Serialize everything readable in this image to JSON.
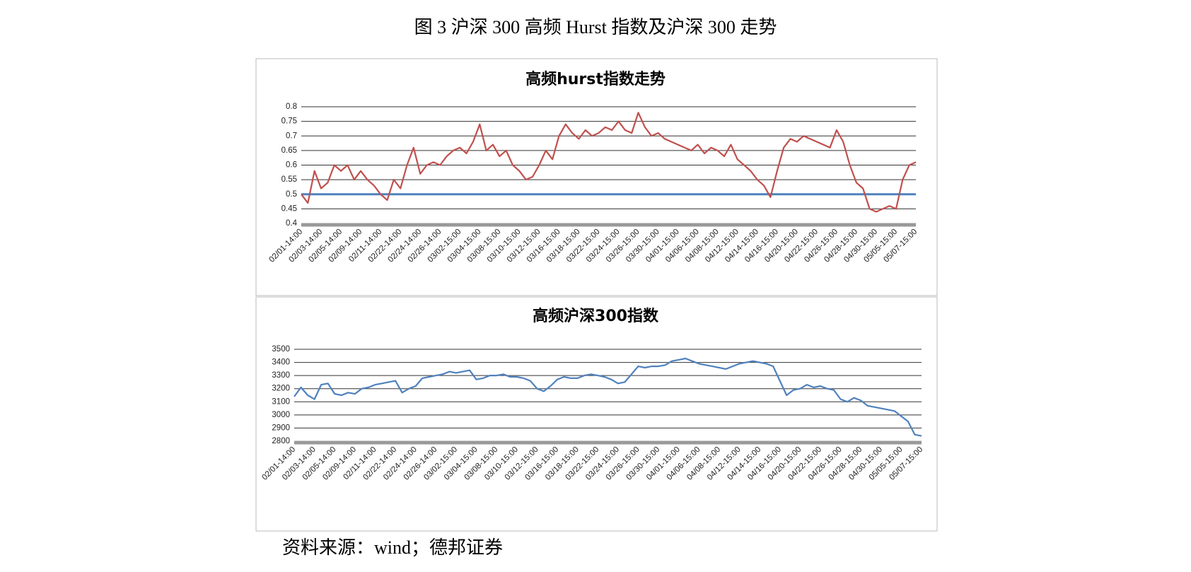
{
  "figure_title": "图 3  沪深 300 高频 Hurst 指数及沪深 300 走势",
  "source": "资料来源：wind；德邦证券",
  "chart_data": [
    {
      "type": "line",
      "title": "高频hurst指数走势",
      "color": "#c0504d",
      "hline": 0.5,
      "hline_color": "#4f81bd",
      "ylim": [
        0.4,
        0.8
      ],
      "yticks": [
        0.4,
        0.45,
        0.5,
        0.55,
        0.6,
        0.65,
        0.7,
        0.75,
        0.8
      ],
      "grid": true,
      "categories": [
        "02/01-14:00",
        null,
        null,
        "02/03-14:00",
        null,
        null,
        "02/05-14:00",
        null,
        null,
        "02/09-14:00",
        null,
        null,
        "02/11-14:00",
        null,
        null,
        "02/22-14:00",
        null,
        null,
        "02/24-14:00",
        null,
        null,
        "02/26-14:00",
        null,
        null,
        "03/02-15:00",
        null,
        null,
        "03/04-15:00",
        null,
        null,
        "03/08-15:00",
        null,
        null,
        "03/10-15:00",
        null,
        null,
        "03/12-15:00",
        null,
        null,
        "03/16-15:00",
        null,
        null,
        "03/18-15:00",
        null,
        null,
        "03/22-15:00",
        null,
        null,
        "03/24-15:00",
        null,
        null,
        "03/26-15:00",
        null,
        null,
        "03/30-15:00",
        null,
        null,
        "04/01-15:00",
        null,
        null,
        "04/06-15:00",
        null,
        null,
        "04/08-15:00",
        null,
        null,
        "04/12-15:00",
        null,
        null,
        "04/14-15:00",
        null,
        null,
        "04/16-15:00",
        null,
        null,
        "04/20-15:00",
        null,
        null,
        "04/22-15:00",
        null,
        null,
        "04/26-15:00",
        null,
        null,
        "04/28-15:00",
        null,
        null,
        "04/30-15:00",
        null,
        null,
        "05/05-15:00",
        null,
        null,
        "05/07-15:00"
      ],
      "values": [
        0.5,
        0.47,
        0.58,
        0.52,
        0.54,
        0.6,
        0.58,
        0.6,
        0.55,
        0.58,
        0.55,
        0.53,
        0.5,
        0.48,
        0.55,
        0.52,
        0.6,
        0.66,
        0.57,
        0.6,
        0.61,
        0.6,
        0.63,
        0.65,
        0.66,
        0.64,
        0.68,
        0.74,
        0.65,
        0.67,
        0.63,
        0.65,
        0.6,
        0.58,
        0.55,
        0.56,
        0.6,
        0.65,
        0.62,
        0.7,
        0.74,
        0.71,
        0.69,
        0.72,
        0.7,
        0.71,
        0.73,
        0.72,
        0.75,
        0.72,
        0.71,
        0.78,
        0.73,
        0.7,
        0.71,
        0.69,
        0.68,
        0.67,
        0.66,
        0.65,
        0.67,
        0.64,
        0.66,
        0.65,
        0.63,
        0.67,
        0.62,
        0.6,
        0.58,
        0.55,
        0.53,
        0.49,
        0.58,
        0.66,
        0.69,
        0.68,
        0.7,
        0.69,
        0.68,
        0.67,
        0.66,
        0.72,
        0.68,
        0.6,
        0.54,
        0.52,
        0.45,
        0.44,
        0.45,
        0.46,
        0.45,
        0.55,
        0.6,
        0.61
      ]
    },
    {
      "type": "line",
      "title": "高频沪深300指数",
      "color": "#4f81bd",
      "ylim": [
        2800,
        3500
      ],
      "yticks": [
        2800,
        2900,
        3000,
        3100,
        3200,
        3300,
        3400,
        3500
      ],
      "grid": true,
      "categories": [
        "02/01-14:00",
        null,
        null,
        "02/03-14:00",
        null,
        null,
        "02/05-14:00",
        null,
        null,
        "02/09-14:00",
        null,
        null,
        "02/11-14:00",
        null,
        null,
        "02/22-14:00",
        null,
        null,
        "02/24-14:00",
        null,
        null,
        "02/26-14:00",
        null,
        null,
        "03/02-15:00",
        null,
        null,
        "03/04-15:00",
        null,
        null,
        "03/08-15:00",
        null,
        null,
        "03/10-15:00",
        null,
        null,
        "03/12-15:00",
        null,
        null,
        "03/16-15:00",
        null,
        null,
        "03/18-15:00",
        null,
        null,
        "03/22-15:00",
        null,
        null,
        "03/24-15:00",
        null,
        null,
        "03/26-15:00",
        null,
        null,
        "03/30-15:00",
        null,
        null,
        "04/01-15:00",
        null,
        null,
        "04/06-15:00",
        null,
        null,
        "04/08-15:00",
        null,
        null,
        "04/12-15:00",
        null,
        null,
        "04/14-15:00",
        null,
        null,
        "04/16-15:00",
        null,
        null,
        "04/20-15:00",
        null,
        null,
        "04/22-15:00",
        null,
        null,
        "04/26-15:00",
        null,
        null,
        "04/28-15:00",
        null,
        null,
        "04/30-15:00",
        null,
        null,
        "05/05-15:00",
        null,
        null,
        "05/07-15:00"
      ],
      "values": [
        3140,
        3210,
        3150,
        3120,
        3230,
        3240,
        3160,
        3150,
        3170,
        3160,
        3200,
        3210,
        3230,
        3240,
        3250,
        3260,
        3170,
        3200,
        3220,
        3280,
        3290,
        3300,
        3310,
        3330,
        3320,
        3330,
        3340,
        3270,
        3280,
        3300,
        3300,
        3310,
        3290,
        3290,
        3280,
        3260,
        3200,
        3180,
        3220,
        3270,
        3290,
        3280,
        3280,
        3300,
        3310,
        3300,
        3290,
        3270,
        3240,
        3250,
        3310,
        3370,
        3360,
        3370,
        3370,
        3380,
        3410,
        3420,
        3430,
        3410,
        3390,
        3380,
        3370,
        3360,
        3350,
        3370,
        3390,
        3400,
        3410,
        3400,
        3390,
        3370,
        3260,
        3150,
        3190,
        3200,
        3230,
        3210,
        3220,
        3200,
        3190,
        3120,
        3100,
        3130,
        3110,
        3070,
        3060,
        3050,
        3040,
        3030,
        2990,
        2950,
        2850,
        2840
      ]
    }
  ]
}
